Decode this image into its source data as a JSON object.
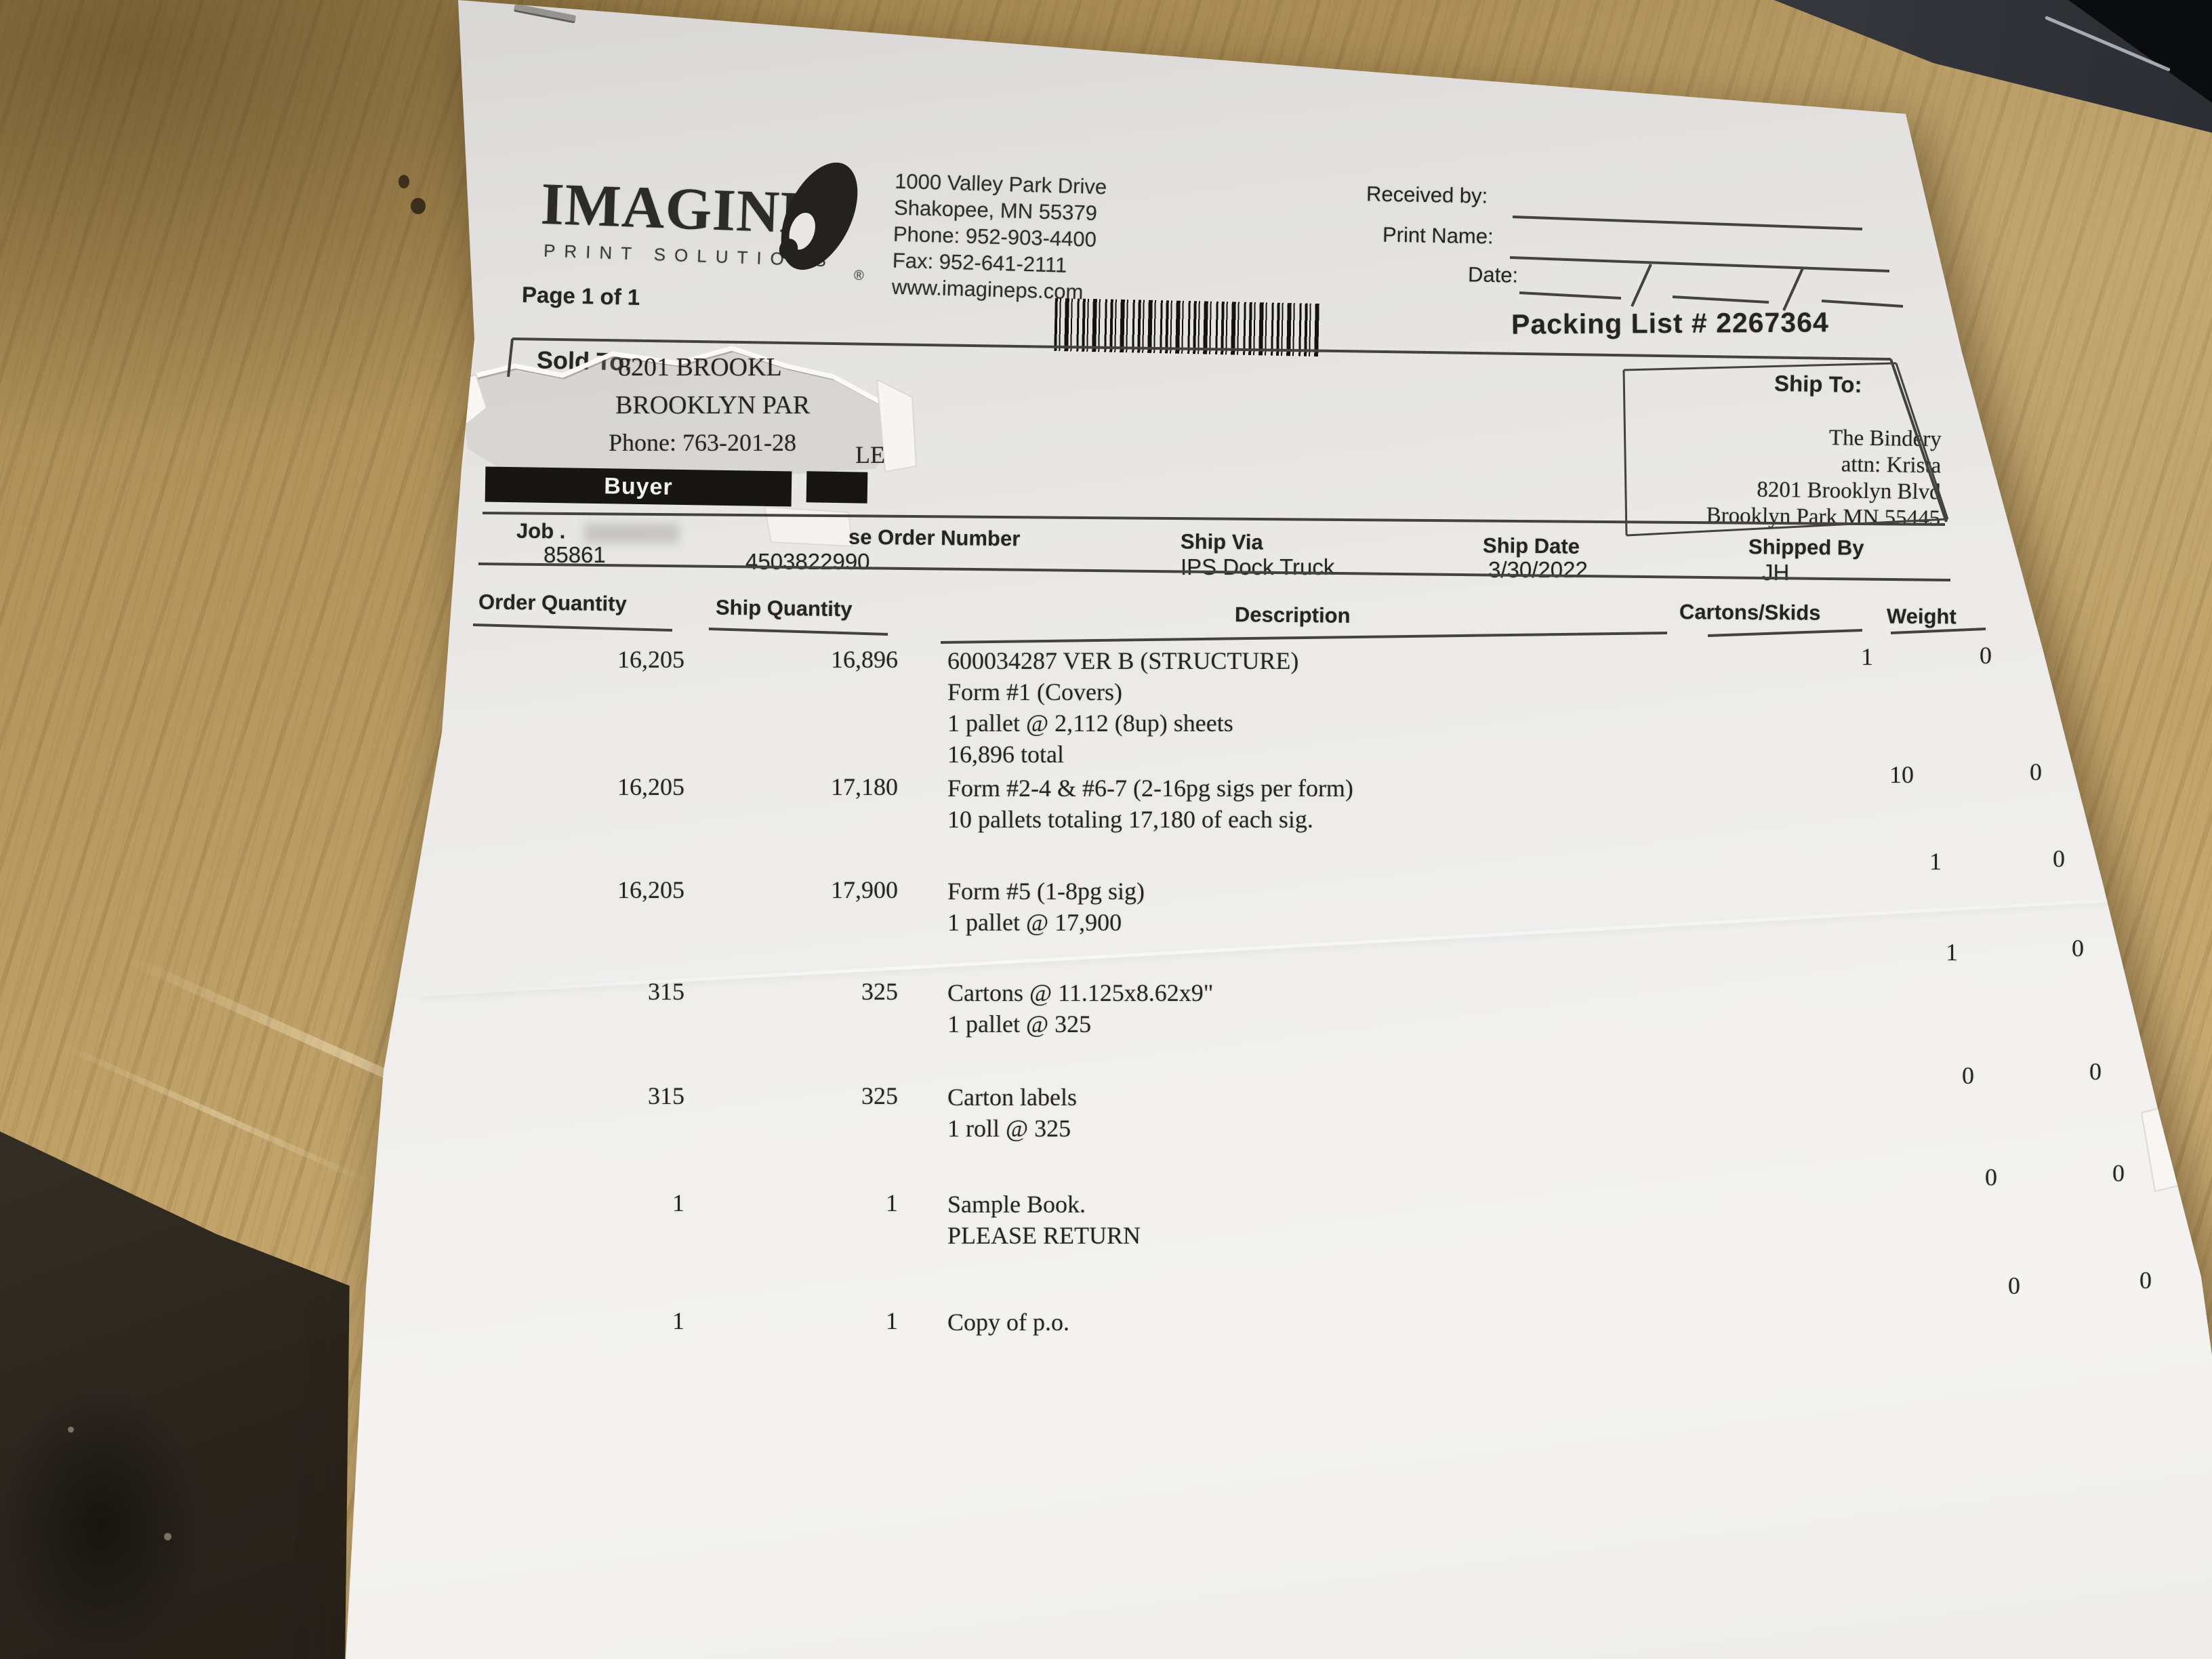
{
  "colors": {
    "paper": "#efeeec",
    "desk_wood": "#c0a268",
    "ink": "#26241f",
    "redaction_bar": "#171614",
    "device_dark": "#1a1b1f"
  },
  "header": {
    "logo_name": "IMAGINE",
    "logo_tagline": "PRINT SOLUTIONS",
    "logo_registered": "®",
    "company_address": "1000 Valley Park Drive\nShakopee, MN  55379\nPhone: 952-903-4400\nFax: 952-641-2111\nwww.imagineps.com",
    "page_label": "Page 1 of 1",
    "received_by_label": "Received by:",
    "print_name_label": "Print Name:",
    "date_label": "Date:",
    "packing_list_label": "Packing List # 2267364"
  },
  "sold_to": {
    "label": "Sold To:",
    "torn_fragment_line1": "8201 BROOKL",
    "torn_fragment_line2": "BROOKLYN PAR",
    "torn_fragment_line3": "Phone: 763-201-28",
    "torn_fragment_le": "LE",
    "buyer_label": "Buyer"
  },
  "ship_to": {
    "label": "Ship To:",
    "address": "The Bindery\nattn: Krista\n8201 Brooklyn Blvd\nBrooklyn Park MN  55445"
  },
  "order_info": {
    "job_label": "Job .",
    "job_number": "85861",
    "po_label": "se Order Number",
    "po_number": "4503822990",
    "ship_via_label": "Ship Via",
    "ship_via": "IPS Dock Truck",
    "ship_date_label": "Ship Date",
    "ship_date": "3/30/2022",
    "shipped_by_label": "Shipped By",
    "shipped_by": "JH"
  },
  "table": {
    "headers": {
      "order_qty": "Order Quantity",
      "ship_qty": "Ship Quantity",
      "description": "Description",
      "cartons_skids": "Cartons/Skids",
      "weight": "Weight"
    },
    "rows": [
      {
        "order_qty": "16,205",
        "ship_qty": "16,896",
        "description": [
          "600034287 VER B (STRUCTURE)",
          "Form #1 (Covers)",
          "1 pallet @ 2,112 (8up) sheets",
          "16,896 total"
        ],
        "cartons": "1",
        "weight": "0"
      },
      {
        "order_qty": "16,205",
        "ship_qty": "17,180",
        "description": [
          "Form #2-4 & #6-7 (2-16pg sigs per form)",
          "10 pallets totaling 17,180 of each sig."
        ],
        "cartons": "10",
        "weight": "0"
      },
      {
        "order_qty": "16,205",
        "ship_qty": "17,900",
        "description": [
          "Form #5 (1-8pg sig)",
          "1 pallet @ 17,900"
        ],
        "cartons": "1",
        "weight": "0"
      },
      {
        "order_qty": "315",
        "ship_qty": "325",
        "description": [
          "Cartons @ 11.125x8.62x9\"",
          "1 pallet @ 325"
        ],
        "cartons": "1",
        "weight": "0"
      },
      {
        "order_qty": "315",
        "ship_qty": "325",
        "description": [
          "Carton labels",
          "1 roll @ 325"
        ],
        "cartons": "0",
        "weight": "0"
      },
      {
        "order_qty": "1",
        "ship_qty": "1",
        "description": [
          "Sample Book.",
          "PLEASE RETURN"
        ],
        "cartons": "0",
        "weight": "0"
      },
      {
        "order_qty": "1",
        "ship_qty": "1",
        "description": [
          "Copy of p.o."
        ],
        "cartons": "0",
        "weight": "0"
      }
    ]
  }
}
